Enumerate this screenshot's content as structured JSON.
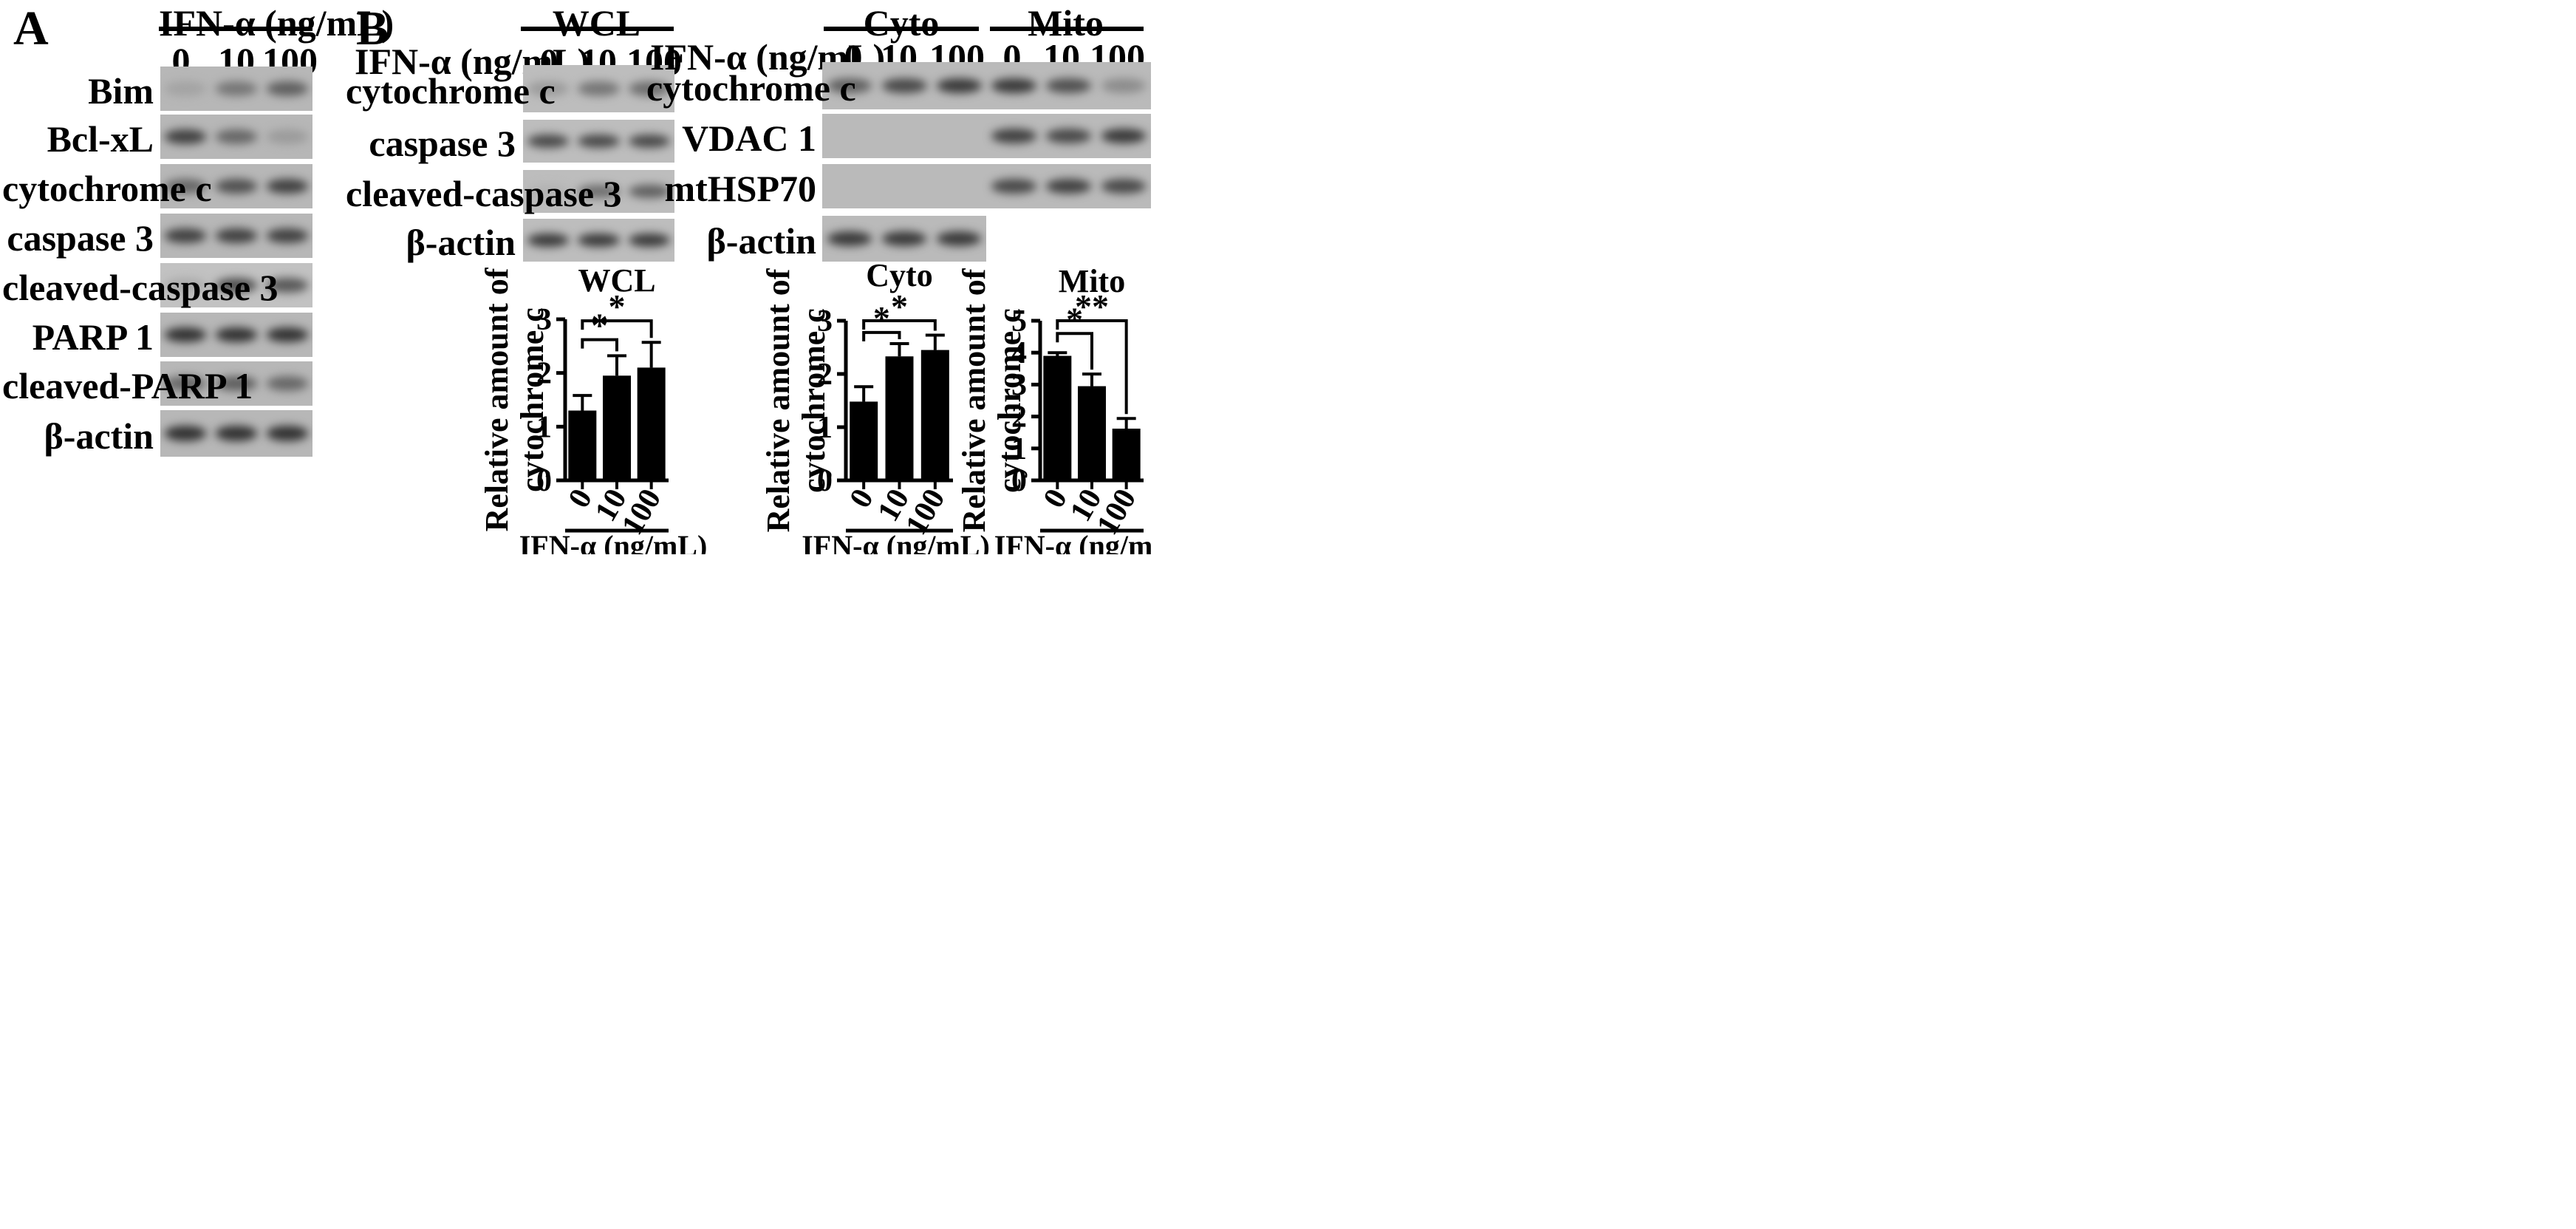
{
  "panel_labels": {
    "a": "A",
    "b": "B"
  },
  "treatment_label": "IFN-α (ng/mL)",
  "doses": [
    "0",
    "10",
    "100"
  ],
  "panel_a": {
    "blots": [
      {
        "label": "Bim",
        "band_intensity": [
          0.15,
          0.45,
          0.6
        ]
      },
      {
        "label": "Bcl-xL",
        "band_intensity": [
          0.8,
          0.55,
          0.2
        ]
      },
      {
        "label": "cytochrome c",
        "band_intensity": [
          0.55,
          0.7,
          0.8
        ]
      },
      {
        "label": "caspase 3",
        "band_intensity": [
          0.8,
          0.8,
          0.8
        ]
      },
      {
        "label": "cleaved-caspase 3",
        "band_intensity": [
          0.1,
          0.7,
          0.65
        ]
      },
      {
        "label": "PARP 1",
        "band_intensity": [
          0.9,
          0.9,
          0.9
        ]
      },
      {
        "label": "cleaved-PARP 1",
        "band_intensity": [
          0.55,
          0.6,
          0.55
        ]
      },
      {
        "label": "β-actin",
        "band_intensity": [
          0.9,
          0.9,
          0.9
        ]
      }
    ]
  },
  "panel_b": {
    "wcl": {
      "header": "WCL",
      "blots": [
        {
          "label": "cytochrome c",
          "band_intensity": [
            0.2,
            0.45,
            0.5
          ]
        },
        {
          "label": "caspase 3",
          "band_intensity": [
            0.75,
            0.75,
            0.75
          ]
        },
        {
          "label": "cleaved-caspase 3",
          "band_intensity": [
            0.05,
            0.5,
            0.6
          ]
        },
        {
          "label": "β-actin",
          "band_intensity": [
            0.85,
            0.85,
            0.85
          ]
        }
      ]
    },
    "fraction": {
      "headers": [
        "Cyto",
        "Mito"
      ],
      "blots": [
        {
          "label": "cytochrome c",
          "band_intensity": [
            0.6,
            0.75,
            0.85,
            0.85,
            0.7,
            0.3
          ]
        },
        {
          "label": "VDAC 1",
          "band_intensity": [
            0,
            0,
            0,
            0.8,
            0.75,
            0.85
          ]
        },
        {
          "label": "mtHSP70",
          "band_intensity": [
            0,
            0,
            0,
            0.75,
            0.8,
            0.75
          ]
        },
        {
          "label": "β-actin",
          "band_intensity": [
            0.85,
            0.85,
            0.85
          ]
        }
      ]
    }
  },
  "chart_data": [
    {
      "type": "bar",
      "title": "WCL",
      "ylabel": "Relative amount of cytochrome c",
      "xlabel": "IFN-α  (ng/mL)",
      "categories": [
        "0",
        "10",
        "100"
      ],
      "values": [
        1.3,
        1.95,
        2.1
      ],
      "errors": [
        0.28,
        0.37,
        0.47
      ],
      "ylim": [
        0,
        3
      ],
      "yticks": [
        "0",
        "1",
        "2",
        "3"
      ],
      "significance": [
        {
          "from": 0,
          "to": 1,
          "label": "*"
        },
        {
          "from": 0,
          "to": 2,
          "label": "*"
        }
      ]
    },
    {
      "type": "bar",
      "title": "Cyto",
      "ylabel": "Relative amount of cytochrome c",
      "xlabel": "IFN-α  (ng/mL)",
      "categories": [
        "0",
        "10",
        "100"
      ],
      "values": [
        1.48,
        2.33,
        2.45
      ],
      "errors": [
        0.28,
        0.24,
        0.28
      ],
      "ylim": [
        0,
        3
      ],
      "yticks": [
        "0",
        "1",
        "2",
        "3"
      ],
      "significance": [
        {
          "from": 0,
          "to": 1,
          "label": "*"
        },
        {
          "from": 0,
          "to": 2,
          "label": "*"
        }
      ]
    },
    {
      "type": "bar",
      "title": "Mito",
      "ylabel": "Relative amount of cytochrome c",
      "xlabel": "IFN-α  (ng/mL)",
      "categories": [
        "0",
        "10",
        "100"
      ],
      "values": [
        3.9,
        2.95,
        1.62
      ],
      "errors": [
        0.1,
        0.38,
        0.32
      ],
      "ylim": [
        0,
        5
      ],
      "yticks": [
        "0",
        "1",
        "2",
        "3",
        "4",
        "5"
      ],
      "significance": [
        {
          "from": 0,
          "to": 1,
          "label": "*"
        },
        {
          "from": 0,
          "to": 2,
          "label": "**"
        }
      ]
    }
  ]
}
